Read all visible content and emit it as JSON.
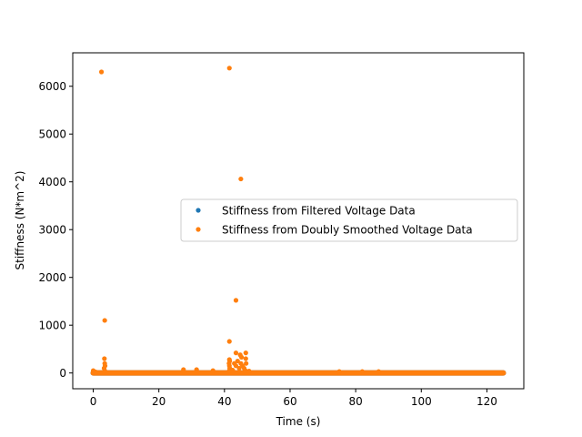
{
  "chart_data": {
    "type": "scatter",
    "xlabel": "Time (s)",
    "ylabel": "Stiffness (N*m^2)",
    "xlim": [
      -6.25,
      131.25
    ],
    "ylim": [
      -330,
      6700
    ],
    "xticks": [
      0,
      20,
      40,
      60,
      80,
      100,
      120
    ],
    "yticks": [
      0,
      1000,
      2000,
      3000,
      4000,
      5000,
      6000
    ],
    "grid": false,
    "legend_position": "center-right",
    "series": [
      {
        "name": "Stiffness from Filtered Voltage Data",
        "color": "#1f77b4",
        "baseline": {
          "x_start": 0,
          "x_end": 125,
          "y": 0
        },
        "points": [
          [
            0,
            0
          ],
          [
            125,
            0
          ]
        ]
      },
      {
        "name": "Stiffness from Doubly Smoothed Voltage Data",
        "color": "#ff7f0e",
        "baseline": {
          "x_start": 0,
          "x_end": 125,
          "y": 0
        },
        "points": [
          [
            2.5,
            6300
          ],
          [
            3.5,
            1100
          ],
          [
            3.4,
            300
          ],
          [
            3.5,
            200
          ],
          [
            3.6,
            150
          ],
          [
            3.3,
            100
          ],
          [
            3.5,
            50
          ],
          [
            0,
            50
          ],
          [
            0.3,
            30
          ],
          [
            0.8,
            20
          ],
          [
            27.5,
            70
          ],
          [
            31.5,
            70
          ],
          [
            36.5,
            50
          ],
          [
            41.5,
            6380
          ],
          [
            45,
            4060
          ],
          [
            43.5,
            1520
          ],
          [
            41.5,
            660
          ],
          [
            43.5,
            420
          ],
          [
            46.5,
            420
          ],
          [
            44.8,
            380
          ],
          [
            45.2,
            330
          ],
          [
            41.5,
            280
          ],
          [
            41.6,
            250
          ],
          [
            41.4,
            200
          ],
          [
            41.5,
            150
          ],
          [
            41.6,
            100
          ],
          [
            41.5,
            50
          ],
          [
            43.0,
            200
          ],
          [
            43.5,
            150
          ],
          [
            44.0,
            250
          ],
          [
            44.5,
            100
          ],
          [
            45.0,
            200
          ],
          [
            45.5,
            150
          ],
          [
            46.0,
            100
          ],
          [
            46.5,
            300
          ],
          [
            46.6,
            200
          ],
          [
            46.4,
            50
          ],
          [
            42.5,
            60
          ],
          [
            47.5,
            40
          ],
          [
            75,
            30
          ],
          [
            82,
            30
          ],
          [
            87,
            30
          ]
        ]
      }
    ]
  }
}
